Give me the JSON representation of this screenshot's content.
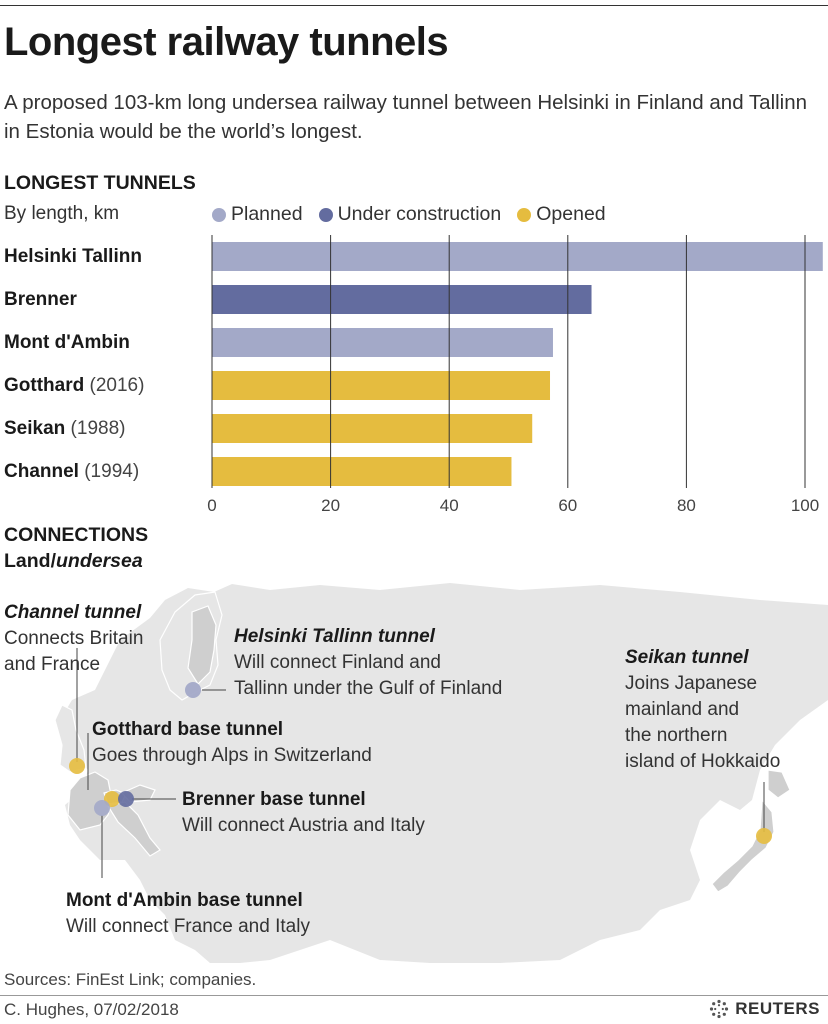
{
  "title": "Longest railway tunnels",
  "subtitle": "A proposed 103-km long undersea railway tunnel between Helsinki in Finland and Tallinn in Estonia would be the world’s longest.",
  "section1": {
    "heading": "LONGEST TUNNELS",
    "subheading": "By length, km"
  },
  "legend": [
    {
      "label": "Planned",
      "color": "#a3a9c8"
    },
    {
      "label": "Under construction",
      "color": "#636c9f"
    },
    {
      "label": "Opened",
      "color": "#e5bc3f"
    }
  ],
  "chart_data": {
    "type": "bar",
    "orientation": "horizontal",
    "title": "LONGEST TUNNELS",
    "subtitle": "By length, km",
    "categories": [
      "Helsinki Tallinn",
      "Brenner",
      "Mont d'Ambin",
      "Gotthard",
      "Seikan",
      "Channel"
    ],
    "category_notes": [
      "",
      "",
      "",
      "(2016)",
      "(1988)",
      "(1994)"
    ],
    "values": [
      103,
      64,
      57.5,
      57,
      54,
      50.5
    ],
    "status": [
      "Planned",
      "Under construction",
      "Planned",
      "Opened",
      "Opened",
      "Opened"
    ],
    "xlim": [
      0,
      103
    ],
    "xticks": [
      0,
      20,
      40,
      60,
      80,
      100
    ],
    "grid": true,
    "legend_position": "top"
  },
  "section2": {
    "heading": "CONNECTIONS",
    "sub_regular": "Land/",
    "sub_italic": "undersea"
  },
  "annotations": {
    "channel": {
      "title": "Channel tunnel",
      "line1": "Connects Britain",
      "line2": "and France"
    },
    "helsinki": {
      "title": "Helsinki Tallinn tunnel",
      "line1": "Will connect Finland and",
      "line2": "Tallinn under the Gulf of Finland"
    },
    "seikan": {
      "title": "Seikan tunnel",
      "line1": "Joins Japanese",
      "line2": "mainland and",
      "line3": "the northern",
      "line4": "island of Hokkaido"
    },
    "gotthard": {
      "title": "Gotthard base tunnel",
      "line1": "Goes through Alps in Switzerland"
    },
    "brenner": {
      "title": "Brenner base tunnel",
      "line1": "Will connect Austria and Italy"
    },
    "ambin": {
      "title": "Mont d'Ambin base tunnel",
      "line1": "Will connect France and Italy"
    }
  },
  "map_colors": {
    "land": "#e6e6e6",
    "highlight": "#cfcfcf",
    "border": "#ffffff"
  },
  "sources": "Sources: FinEst Link; companies.",
  "credit": "C. Hughes, 07/02/2018",
  "brand": "REUTERS"
}
